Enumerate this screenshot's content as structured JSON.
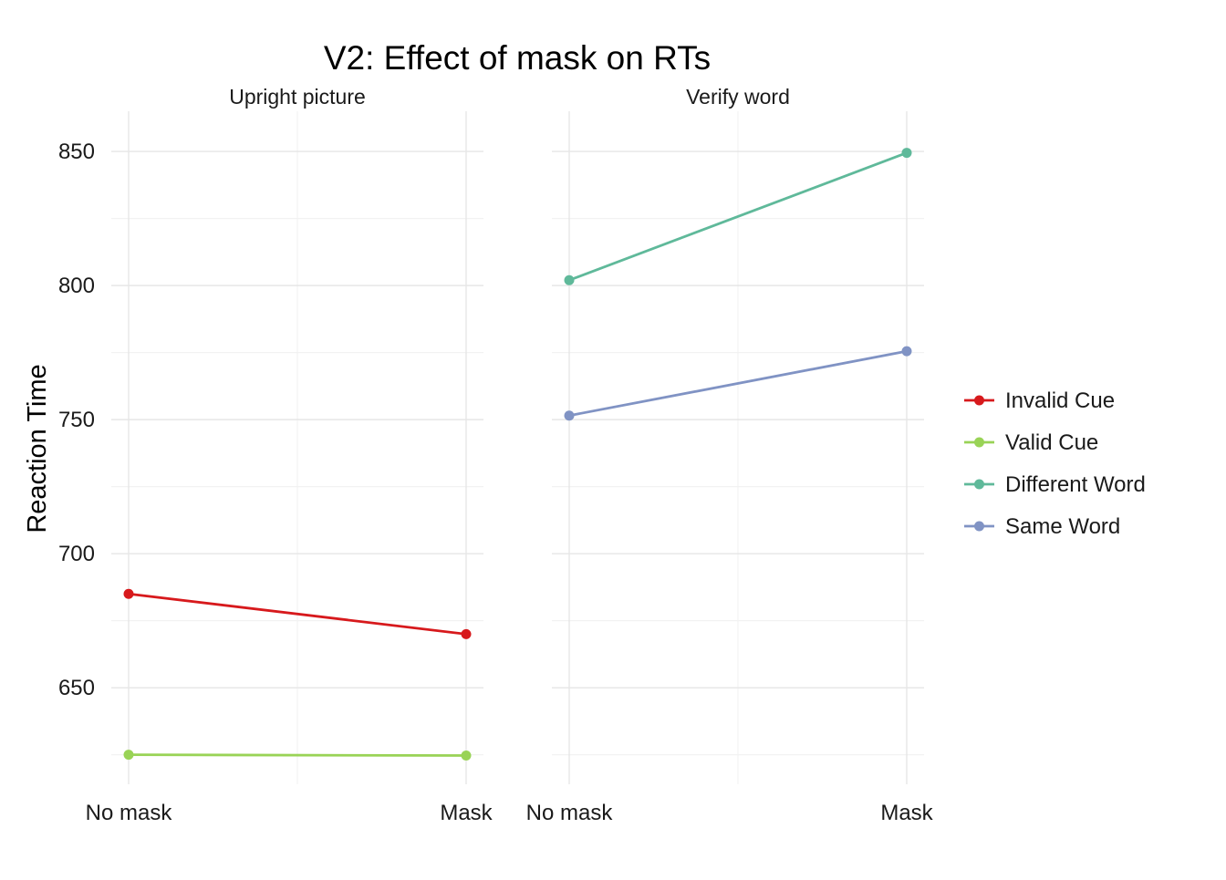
{
  "chart_data": {
    "type": "line",
    "title": "V2: Effect of mask on RTs",
    "ylabel": "Reaction Time",
    "xlabel": "",
    "ylim": [
      614,
      865
    ],
    "yticks": [
      650,
      700,
      750,
      800,
      850
    ],
    "categories": [
      "No mask",
      "Mask"
    ],
    "grid": true,
    "legend_position": "right",
    "panels": [
      {
        "title": "Upright picture",
        "series": [
          {
            "name": "Invalid Cue",
            "color": "#d7191c",
            "values": [
              685,
              670
            ]
          },
          {
            "name": "Valid Cue",
            "color": "#99d356",
            "values": [
              625,
              624.7
            ]
          }
        ]
      },
      {
        "title": "Verify word",
        "series": [
          {
            "name": "Different Word",
            "color": "#5fb99a",
            "values": [
              802,
              849.5
            ]
          },
          {
            "name": "Same Word",
            "color": "#8093c4",
            "values": [
              751.5,
              775.5
            ]
          }
        ]
      }
    ],
    "legend": [
      {
        "name": "Invalid Cue",
        "color": "#d7191c"
      },
      {
        "name": "Valid Cue",
        "color": "#99d356"
      },
      {
        "name": "Different Word",
        "color": "#5fb99a"
      },
      {
        "name": "Same Word",
        "color": "#8093c4"
      }
    ]
  }
}
